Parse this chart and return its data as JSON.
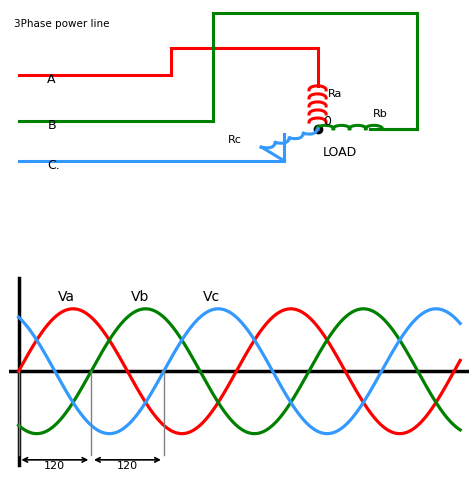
{
  "bg_color": "#ffffff",
  "circuit": {
    "phase_A_color": "#ff0000",
    "phase_B_color": "#008000",
    "phase_C_color": "#3399ff",
    "label_3phase": "3Phase power line",
    "label_A": "A",
    "label_B": "B",
    "label_C": "C.",
    "label_Ra": "Ra",
    "label_Rb": "Rb",
    "label_Rc": "Rc",
    "label_0": "0",
    "label_LOAD": "LOAD"
  },
  "waveform": {
    "Va_color": "#ff0000",
    "Vb_color": "#008000",
    "Vc_color": "#3399ff",
    "label_Va": "Va",
    "label_Vb": "Vb",
    "label_Vc": "Vc",
    "label_120": "120"
  }
}
